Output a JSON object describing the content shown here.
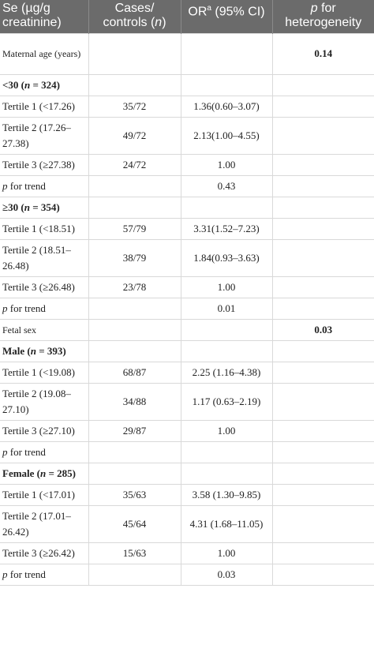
{
  "header": {
    "col1": "Se (µg/g creatinine)",
    "col2_a": "Cases/ controls (",
    "col2_n": "n",
    "col2_b": ")",
    "col3_a": "OR",
    "col3_sup": "a",
    "col3_b": " (95% CI)",
    "col4_p": "p",
    "col4_b": " for heterogeneity"
  },
  "rows": {
    "maternal_age": {
      "label": "Maternal age (years)",
      "het": "0.14"
    },
    "age_lt30": {
      "pre": "<30 (",
      "n": "n",
      "post": " = 324)"
    },
    "a1_t1": {
      "label": "Tertile 1 (<17.26)",
      "cases": "35/72",
      "or": "1.36(0.60–3.07)"
    },
    "a1_t2": {
      "label": "Tertile 2 (17.26–27.38)",
      "cases": "49/72",
      "or": "2.13(1.00–4.55)"
    },
    "a1_t3": {
      "label": "Tertile 3 (≥27.38)",
      "cases": "24/72",
      "or": "1.00"
    },
    "a1_trend": {
      "p": "p",
      "label": " for trend",
      "or": "0.43"
    },
    "age_ge30": {
      "pre": "≥30 (",
      "n": "n",
      "post": " = 354)"
    },
    "a2_t1": {
      "label": "Tertile 1 (<18.51)",
      "cases": "57/79",
      "or": "3.31(1.52–7.23)"
    },
    "a2_t2": {
      "label": "Tertile 2 (18.51–26.48)",
      "cases": "38/79",
      "or": "1.84(0.93–3.63)"
    },
    "a2_t3": {
      "label": "Tertile 3 (≥26.48)",
      "cases": "23/78",
      "or": "1.00"
    },
    "a2_trend": {
      "p": "p",
      "label": " for trend",
      "or": "0.01"
    },
    "fetal_sex": {
      "label": "Fetal sex",
      "het": "0.03"
    },
    "male": {
      "pre": "Male (",
      "n": "n",
      "post": " = 393)"
    },
    "m_t1": {
      "label": "Tertile 1 (<19.08)",
      "cases": "68/87",
      "or": "2.25 (1.16–4.38)"
    },
    "m_t2": {
      "label": "Tertile 2 (19.08–27.10)",
      "cases": "34/88",
      "or": "1.17 (0.63–2.19)"
    },
    "m_t3": {
      "label": "Tertile 3 (≥27.10)",
      "cases": "29/87",
      "or": "1.00"
    },
    "m_trend": {
      "p": "p",
      "label": " for trend",
      "or": ""
    },
    "female": {
      "pre": "Female (",
      "n": "n",
      "post": " = 285)"
    },
    "f_t1": {
      "label": "Tertile 1 (<17.01)",
      "cases": "35/63",
      "or": "3.58 (1.30–9.85)"
    },
    "f_t2": {
      "label": "Tertile 2 (17.01–26.42)",
      "cases": "45/64",
      "or": "4.31 (1.68–11.05)"
    },
    "f_t3": {
      "label": "Tertile 3 (≥26.42)",
      "cases": "15/63",
      "or": "1.00"
    },
    "f_trend": {
      "p": "p",
      "label": " for trend",
      "or": "0.03"
    }
  },
  "colors": {
    "header_bg": "#6b6b6b",
    "header_text": "#ffffff",
    "grid": "#d9d9d9"
  }
}
